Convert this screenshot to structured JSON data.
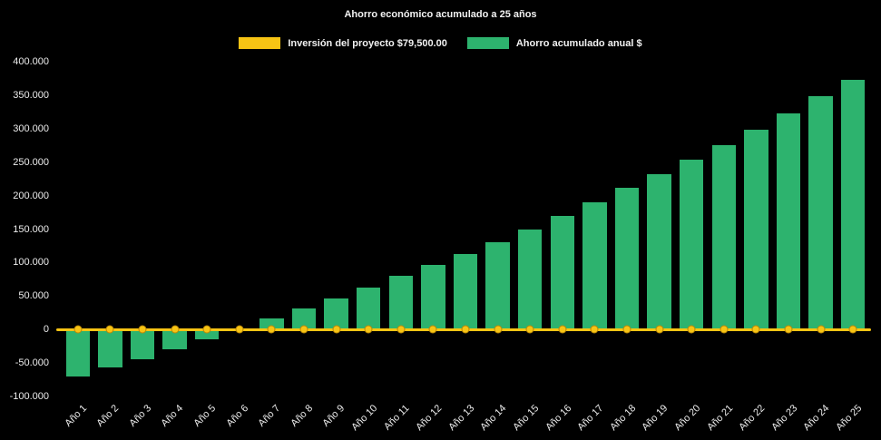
{
  "title": "Ahorro económico acumulado a 25 años",
  "colors": {
    "background": "#000000",
    "investment": "#f7c414",
    "savings": "#2db36e",
    "text": "#f2f2f2"
  },
  "legend": [
    {
      "label": "Inversión del proyecto $79,500.00",
      "color": "#f7c414"
    },
    {
      "label": "Ahorro acumulado anual $",
      "color": "#2db36e"
    }
  ],
  "chart_data": {
    "type": "bar",
    "title": "Ahorro económico acumulado a 25 años",
    "xlabel": "",
    "ylabel": "",
    "ylim": [
      -100000,
      400000
    ],
    "ytick_step": 50000,
    "ytick_labels": [
      "400.000",
      "350.000",
      "300.000",
      "250.000",
      "200.000",
      "150.000",
      "100.000",
      "50.000",
      "0",
      "-50.000",
      "-100.000"
    ],
    "grid": false,
    "legend_position": "top",
    "categories": [
      "Año 1",
      "Año 2",
      "Año 3",
      "Año 4",
      "Año 5",
      "Año 6",
      "Año 7",
      "Año 8",
      "Año 9",
      "Año 10",
      "Año 11",
      "Año 12",
      "Año 13",
      "Año 14",
      "Año 15",
      "Año 16",
      "Año 17",
      "Año 18",
      "Año 19",
      "Año 20",
      "Año 21",
      "Año 22",
      "Año 23",
      "Año 24",
      "Año 25"
    ],
    "series": [
      {
        "name": "Inversión del proyecto $79,500.00",
        "type": "line",
        "color": "#f7c414",
        "values": [
          0,
          0,
          0,
          0,
          0,
          0,
          0,
          0,
          0,
          0,
          0,
          0,
          0,
          0,
          0,
          0,
          0,
          0,
          0,
          0,
          0,
          0,
          0,
          0,
          0
        ]
      },
      {
        "name": "Ahorro acumulado anual $",
        "type": "bar",
        "color": "#2db36e",
        "values": [
          -70000,
          -57000,
          -44000,
          -30000,
          -15000,
          1000,
          16000,
          31000,
          47000,
          63000,
          80000,
          97000,
          113000,
          131000,
          150000,
          170000,
          190000,
          211000,
          232000,
          254000,
          276000,
          299000,
          323000,
          348000,
          373000
        ]
      }
    ]
  }
}
